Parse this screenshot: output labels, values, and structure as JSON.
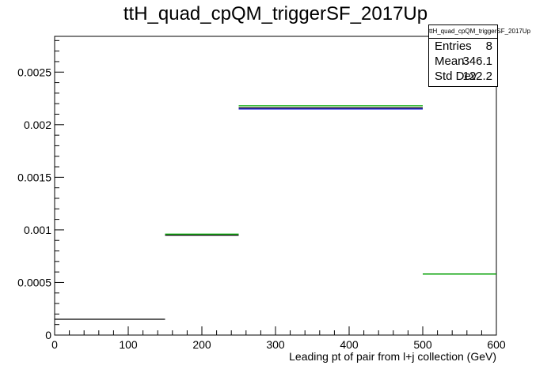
{
  "title": "ttH_quad_cpQM_triggerSF_2017Up",
  "stats": {
    "name": "ttH_quad_cpQM_triggerSF_2017Up",
    "rows": [
      {
        "label": "Entries",
        "value": "8"
      },
      {
        "label": "Mean",
        "value": "346.1"
      },
      {
        "label": "Std Dev",
        "value": "122.2"
      }
    ]
  },
  "chart_data": {
    "type": "histogram",
    "title": "ttH_quad_cpQM_triggerSF_2017Up",
    "xlabel": "Leading pt of pair from l+j collection (GeV)",
    "ylabel": "",
    "xlim": [
      0,
      600
    ],
    "ylim": [
      0,
      0.00284
    ],
    "x_ticks": [
      0,
      100,
      200,
      300,
      400,
      500,
      600
    ],
    "x_tick_labels": [
      "0",
      "100",
      "200",
      "300",
      "400",
      "500",
      "600"
    ],
    "y_ticks": [
      0,
      0.0005,
      0.001,
      0.0015,
      0.002,
      0.0025
    ],
    "y_tick_labels": [
      "0",
      "0.0005",
      "0.001",
      "0.0015",
      "0.002",
      "0.0025"
    ],
    "series": [
      {
        "color": "#000000",
        "bins": [
          {
            "x0": 0,
            "x1": 150,
            "y": 0.00015
          },
          {
            "x0": 150,
            "x1": 250,
            "y": 0.00095
          },
          {
            "x0": 250,
            "x1": 500,
            "y": 0.00216
          },
          {
            "x0": 500,
            "x1": 600,
            "y": 0.00058
          }
        ]
      },
      {
        "color": "#0000cc",
        "bins": [
          {
            "x0": 250,
            "x1": 500,
            "y": 0.00215
          }
        ]
      },
      {
        "color": "#00aa00",
        "bins": [
          {
            "x0": 150,
            "x1": 250,
            "y": 0.00096
          },
          {
            "x0": 250,
            "x1": 500,
            "y": 0.00218
          },
          {
            "x0": 500,
            "x1": 600,
            "y": 0.00058
          }
        ]
      }
    ],
    "grid": false,
    "legend": "none"
  }
}
